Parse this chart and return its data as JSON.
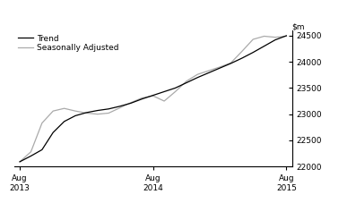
{
  "ylim": [
    22000,
    24600
  ],
  "yticks": [
    22000,
    22500,
    23000,
    23500,
    24000,
    24500
  ],
  "xtick_labels": [
    "Aug\n2013",
    "Aug\n2014",
    "Aug\n2015"
  ],
  "trend_color": "#000000",
  "seasonally_adjusted_color": "#aaaaaa",
  "legend_entries": [
    "Trend",
    "Seasonally Adjusted"
  ],
  "background_color": "#ffffff",
  "trend_x": [
    0,
    1,
    2,
    3,
    4,
    5,
    6,
    7,
    8,
    9,
    10,
    11,
    12,
    13,
    14,
    15,
    16,
    17,
    18,
    19,
    20,
    21,
    22,
    23,
    24
  ],
  "trend_y": [
    22090,
    22200,
    22320,
    22650,
    22860,
    22970,
    23030,
    23070,
    23100,
    23150,
    23210,
    23290,
    23360,
    23430,
    23500,
    23600,
    23700,
    23790,
    23880,
    23970,
    24070,
    24180,
    24300,
    24420,
    24500
  ],
  "sa_x": [
    0,
    1,
    2,
    3,
    4,
    5,
    6,
    7,
    8,
    9,
    10,
    11,
    12,
    13,
    14,
    15,
    16,
    17,
    18,
    19,
    20,
    21,
    22,
    23,
    24
  ],
  "sa_y": [
    22090,
    22280,
    22830,
    23060,
    23110,
    23060,
    23020,
    23000,
    23020,
    23120,
    23220,
    23310,
    23350,
    23250,
    23430,
    23630,
    23760,
    23830,
    23900,
    23980,
    24200,
    24430,
    24490,
    24470,
    24490
  ],
  "line_width": 0.9
}
